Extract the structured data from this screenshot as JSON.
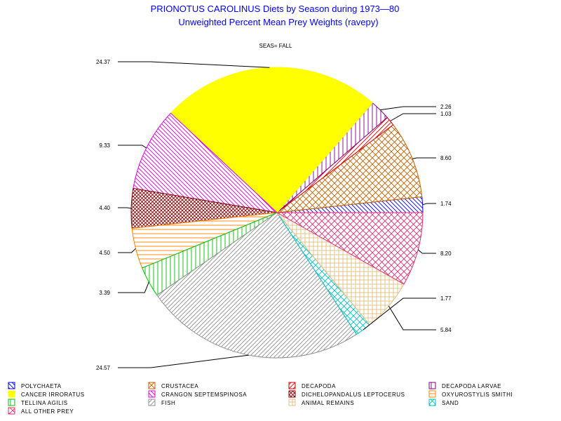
{
  "chart_data": {
    "type": "pie",
    "title": "PRIONOTUS CAROLINUS Diets by Season during 1973—80",
    "subtitle": "Unweighted Percent Mean Prey Weights (ravepy)",
    "panel_label": "SEAS= FALL",
    "legend_position": "bottom",
    "slices": [
      {
        "name": "POLYCHAETA",
        "value": 1.74,
        "label": "1.74",
        "color": "#0000ff",
        "pattern": "diag-back"
      },
      {
        "name": "CRUSTACEA",
        "value": 8.6,
        "label": "8.60",
        "color": "#c06000",
        "pattern": "crosshatch"
      },
      {
        "name": "DECAPODA",
        "value": 1.03,
        "label": "1.03",
        "color": "#e00000",
        "pattern": "diag"
      },
      {
        "name": "DECAPODA LARVAE",
        "value": 2.26,
        "label": "2.26",
        "color": "#800080",
        "pattern": "vertical"
      },
      {
        "name": "CANCER IRRORATUS",
        "value": 24.37,
        "label": "24.37",
        "color": "#ffff00",
        "pattern": "solid"
      },
      {
        "name": "CRANGON SEPTEMSPINOSA",
        "value": 9.33,
        "label": "9.33",
        "color": "#e000e0",
        "pattern": "diag-back"
      },
      {
        "name": "DICHELOPANDALUS LEPTOCERUS",
        "value": 4.4,
        "label": "4.40",
        "color": "#800000",
        "pattern": "crosshatch-dense"
      },
      {
        "name": "OXYUROSTYLIS SMITHI",
        "value": 4.5,
        "label": "4.50",
        "color": "#ff8000",
        "pattern": "horizontal"
      },
      {
        "name": "TELLINA AGILIS",
        "value": 3.39,
        "label": "3.39",
        "color": "#00c000",
        "pattern": "vertical"
      },
      {
        "name": "FISH",
        "value": 24.57,
        "label": "24.57",
        "color": "#909090",
        "pattern": "diag"
      },
      {
        "name": "ANIMAL REMAINS",
        "value": 5.84,
        "label": "5.84",
        "color": "#e0c080",
        "pattern": "grid"
      },
      {
        "name": "SAND",
        "value": 1.77,
        "label": "1.77",
        "color": "#00c0c0",
        "pattern": "crosshatch"
      },
      {
        "name": "ALL OTHER PREY",
        "value": 8.2,
        "label": "8.20",
        "color": "#e03070",
        "pattern": "crosshatch"
      }
    ],
    "pie_order": [
      "POLYCHAETA",
      "CRUSTACEA",
      "DECAPODA",
      "DECAPODA LARVAE",
      "CANCER IRRORATUS",
      "CRANGON SEPTEMSPINOSA",
      "DICHELOPANDALUS LEPTOCERUS",
      "OXYUROSTYLIS SMITHI",
      "TELLINA AGILIS",
      "FISH",
      "SAND",
      "ANIMAL REMAINS",
      "ALL OTHER PREY"
    ],
    "legend_rows": [
      [
        "POLYCHAETA",
        "CRUSTACEA",
        "DECAPODA",
        "DECAPODA LARVAE"
      ],
      [
        "CANCER IRRORATUS",
        "CRANGON SEPTEMSPINOSA",
        "DICHELOPANDALUS LEPTOCERUS",
        "OXYUROSTYLIS SMITHI"
      ],
      [
        "TELLINA AGILIS",
        "FISH",
        "ANIMAL REMAINS",
        "SAND"
      ],
      [
        "ALL OTHER PREY"
      ]
    ]
  }
}
